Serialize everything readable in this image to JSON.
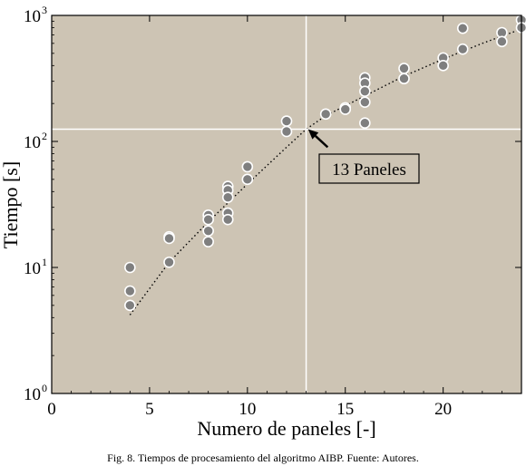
{
  "chart_data": {
    "type": "scatter",
    "xlabel": "Numero de paneles [-]",
    "ylabel": "Tiempo [s]",
    "xlim": [
      0,
      24
    ],
    "ylim": [
      1,
      1000
    ],
    "yscale": "log",
    "xticks": [
      0,
      5,
      10,
      15,
      20
    ],
    "yticks": [
      {
        "value": 1,
        "base": "10",
        "exp": "0"
      },
      {
        "value": 10,
        "base": "10",
        "exp": "1"
      },
      {
        "value": 100,
        "base": "10",
        "exp": "2"
      },
      {
        "value": 1000,
        "base": "10",
        "exp": "3"
      }
    ],
    "grid": false,
    "background": "#cdc4b4",
    "marker_color": "#7f7f7f",
    "points": [
      {
        "x": 4,
        "y": 10
      },
      {
        "x": 4,
        "y": 6.5
      },
      {
        "x": 4,
        "y": 5
      },
      {
        "x": 6,
        "y": 17.5
      },
      {
        "x": 6,
        "y": 17
      },
      {
        "x": 6,
        "y": 11
      },
      {
        "x": 8,
        "y": 26
      },
      {
        "x": 8,
        "y": 24
      },
      {
        "x": 8,
        "y": 19.5
      },
      {
        "x": 8,
        "y": 16
      },
      {
        "x": 9,
        "y": 44
      },
      {
        "x": 9,
        "y": 41
      },
      {
        "x": 9,
        "y": 36
      },
      {
        "x": 9,
        "y": 27
      },
      {
        "x": 9,
        "y": 24
      },
      {
        "x": 10,
        "y": 63
      },
      {
        "x": 10,
        "y": 50
      },
      {
        "x": 12,
        "y": 145
      },
      {
        "x": 12,
        "y": 120
      },
      {
        "x": 14,
        "y": 165
      },
      {
        "x": 15,
        "y": 185
      },
      {
        "x": 15,
        "y": 180
      },
      {
        "x": 16,
        "y": 320
      },
      {
        "x": 16,
        "y": 290
      },
      {
        "x": 16,
        "y": 250
      },
      {
        "x": 16,
        "y": 205
      },
      {
        "x": 16,
        "y": 140
      },
      {
        "x": 18,
        "y": 380
      },
      {
        "x": 18,
        "y": 315
      },
      {
        "x": 20,
        "y": 460
      },
      {
        "x": 20,
        "y": 400
      },
      {
        "x": 21,
        "y": 790
      },
      {
        "x": 21,
        "y": 540
      },
      {
        "x": 23,
        "y": 730
      },
      {
        "x": 23,
        "y": 620
      },
      {
        "x": 24,
        "y": 920
      },
      {
        "x": 24,
        "y": 800
      }
    ],
    "trend_line": {
      "style": "dotted",
      "points": [
        {
          "x": 4,
          "y": 4.2
        },
        {
          "x": 6,
          "y": 11
        },
        {
          "x": 8,
          "y": 23
        },
        {
          "x": 10,
          "y": 46
        },
        {
          "x": 12,
          "y": 90
        },
        {
          "x": 13,
          "y": 125
        },
        {
          "x": 14,
          "y": 160
        },
        {
          "x": 16,
          "y": 230
        },
        {
          "x": 18,
          "y": 330
        },
        {
          "x": 20,
          "y": 450
        },
        {
          "x": 22,
          "y": 600
        },
        {
          "x": 24,
          "y": 780
        }
      ]
    },
    "reference_lines": {
      "x": 13,
      "y": 125
    },
    "annotation": {
      "text": "13 Paneles",
      "arrow_from": {
        "x": 14.1,
        "y": 90
      },
      "arrow_to": {
        "x": 13.1,
        "y": 125
      }
    }
  },
  "caption": "Fig.  8. Tiempos de procesamiento del algoritmo AIBP. Fuente: Autores."
}
